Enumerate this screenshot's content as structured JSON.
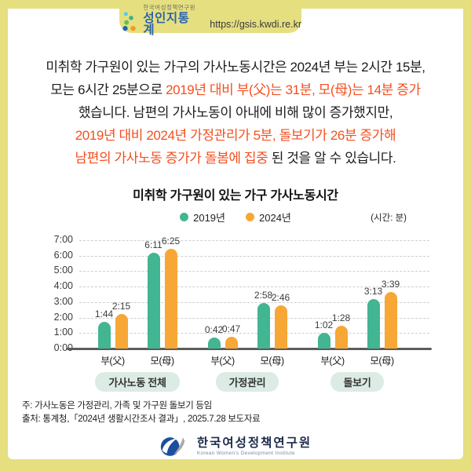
{
  "header": {
    "org": "한국여성정책연구원",
    "brand": "성인지통계",
    "url": "https://gsis.kwdi.re.kr"
  },
  "intro": {
    "lines": [
      [
        {
          "t": "미취학 가구원이 있는 가구의 가사노동시간은 2024년 부는 2시간 15분,",
          "hl": false
        }
      ],
      [
        {
          "t": "모는 6시간 25분으로 ",
          "hl": false
        },
        {
          "t": "2019년 대비 부(父)는 31분, 모(母)는 14분 증가",
          "hl": true
        }
      ],
      [
        {
          "t": "했습니다. 남편의 가사노동이 아내에 비해 많이 증가했지만,",
          "hl": false
        }
      ],
      [
        {
          "t": "2019년 대비 2024년 가정관리가 5분, 돌보기가 26분 증가해",
          "hl": true
        }
      ],
      [
        {
          "t": "남편의 가사노동 증가가 돌봄에 집중",
          "hl": true
        },
        {
          "t": " 된 것을 알 수 있습니다.",
          "hl": false
        }
      ]
    ]
  },
  "chart_data": {
    "type": "bar",
    "title": "미취학 가구원이 있는 가구 가사노동시간",
    "unit_note": "(시간: 분)",
    "legend_position": "top-center",
    "grid": "dashed-horizontal",
    "ylim_hours": [
      0,
      7
    ],
    "yticks": [
      "0:00",
      "1:00",
      "2:00",
      "3:00",
      "4:00",
      "5:00",
      "6:00",
      "7:00"
    ],
    "legend": [
      {
        "name": "2019년",
        "color": "#42b592"
      },
      {
        "name": "2024년",
        "color": "#f7a735"
      }
    ],
    "groups": [
      {
        "label": "가사노동 전체",
        "pairs": [
          {
            "category": "부(父)",
            "v2019": "1:44",
            "v2024": "2:15"
          },
          {
            "category": "모(母)",
            "v2019": "6:11",
            "v2024": "6:25"
          }
        ]
      },
      {
        "label": "가정관리",
        "pairs": [
          {
            "category": "부(父)",
            "v2019": "0:42",
            "v2024": "0:47"
          },
          {
            "category": "모(母)",
            "v2019": "2:58",
            "v2024": "2:46"
          }
        ]
      },
      {
        "label": "돌보기",
        "pairs": [
          {
            "category": "부(父)",
            "v2019": "1:02",
            "v2024": "1:28"
          },
          {
            "category": "모(母)",
            "v2019": "3:13",
            "v2024": "3:39"
          }
        ]
      }
    ]
  },
  "notes": [
    "주: 가사노동은 가정관리, 가족 및 가구원 돌보기 등임",
    "출처: 통계청,「2024년 생활시간조사 결과」, 2025.7.28 보도자료"
  ],
  "footer": {
    "name": "한국여성정책연구원",
    "eng": "Korean Women's Development Institute"
  },
  "colors": {
    "background_yellow": "#e5df80",
    "highlight_orange": "#f34f1f",
    "bar_2019": "#42b592",
    "bar_2024": "#f7a735",
    "brand_blue": "#2c64a9",
    "pill_mint": "#dcece5",
    "axis_gray": "#5c5c5c"
  }
}
